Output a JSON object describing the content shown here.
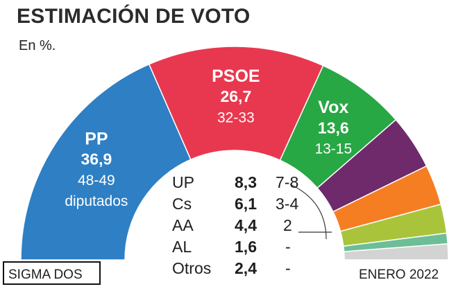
{
  "chart_data": {
    "type": "pie",
    "title": "ESTIMACIÓN DE VOTO",
    "subtitle": "En %.",
    "source": "SIGMA DOS",
    "date": "ENERO 2022",
    "series": [
      {
        "name": "PP",
        "value": 36.9,
        "value_label": "36,9",
        "seats": "48-49",
        "seats_suffix": "diputados",
        "color": "#2e7fc4"
      },
      {
        "name": "PSOE",
        "value": 26.7,
        "value_label": "26,7",
        "seats": "32-33",
        "color": "#e8384f"
      },
      {
        "name": "Vox",
        "value": 13.6,
        "value_label": "13,6",
        "seats": "13-15",
        "color": "#28a745"
      },
      {
        "name": "UP",
        "value": 8.3,
        "value_label": "8,3",
        "seats": "7-8",
        "color": "#6e2a6b"
      },
      {
        "name": "Cs",
        "value": 6.1,
        "value_label": "6,1",
        "seats": "3-4",
        "color": "#f57e22"
      },
      {
        "name": "AA",
        "value": 4.4,
        "value_label": "4,4",
        "seats": "2",
        "color": "#a9c43b"
      },
      {
        "name": "AL",
        "value": 1.6,
        "value_label": "1,6",
        "seats": "-",
        "color": "#6dbe97"
      },
      {
        "name": "Otros",
        "value": 2.4,
        "value_label": "2,4",
        "seats": "-",
        "color": "#d3d3d3"
      }
    ]
  }
}
